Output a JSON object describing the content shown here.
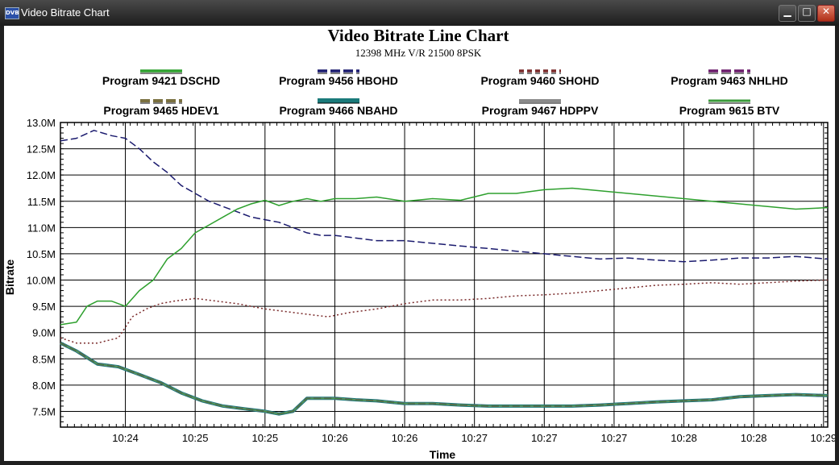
{
  "window": {
    "title": "Video Bitrate Chart",
    "icon": "DVB",
    "minimize_glyph": "▁",
    "maximize_glyph": "□",
    "close_glyph": "✕",
    "close_color": "#c0392b"
  },
  "chart_data": {
    "type": "line",
    "title": "Video Bitrate Line Chart",
    "subtitle": "12398 MHz V/R 21500 8PSK",
    "xlabel": "Time",
    "ylabel": "Bitrate",
    "ylim": [
      7.2,
      13.0
    ],
    "y_ticks": [
      13.0,
      12.5,
      12.0,
      11.5,
      11.0,
      10.5,
      10.0,
      9.5,
      9.0,
      8.5,
      8.0,
      7.5
    ],
    "y_tick_labels": [
      "13.0M",
      "12.5M",
      "12.0M",
      "11.5M",
      "11.0M",
      "10.5M",
      "10.0M",
      "9.5M",
      "9.0M",
      "8.5M",
      "8.0M",
      "7.5M"
    ],
    "x_tick_labels": [
      "10:24",
      "10:25",
      "10:25",
      "10:26",
      "10:26",
      "10:27",
      "10:27",
      "10:27",
      "10:28",
      "10:28",
      "10:29"
    ],
    "x_tick_pos": [
      1.0,
      2.0,
      3.0,
      4.0,
      5.0,
      6.0,
      7.0,
      8.0,
      9.0,
      10.0,
      11.0
    ],
    "xlim": [
      0.07,
      11.06
    ],
    "grid": true,
    "legend_position": "top",
    "series": [
      {
        "name": "Program 9421 DSCHD",
        "color": "#2ea02e",
        "style": "solid",
        "width": 1.5,
        "x": [
          0.07,
          0.3,
          0.45,
          0.6,
          0.8,
          1.0,
          1.2,
          1.4,
          1.6,
          1.8,
          2.0,
          2.2,
          2.4,
          2.6,
          2.8,
          3.0,
          3.2,
          3.4,
          3.6,
          3.8,
          4.0,
          4.3,
          4.6,
          5.0,
          5.4,
          5.8,
          6.2,
          6.6,
          7.0,
          7.4,
          7.8,
          8.2,
          8.6,
          9.0,
          9.4,
          9.8,
          10.2,
          10.6,
          11.06
        ],
        "values": [
          9.15,
          9.2,
          9.5,
          9.6,
          9.6,
          9.5,
          9.8,
          10.0,
          10.4,
          10.6,
          10.9,
          11.05,
          11.2,
          11.35,
          11.45,
          11.52,
          11.42,
          11.5,
          11.55,
          11.5,
          11.55,
          11.55,
          11.58,
          11.5,
          11.55,
          11.52,
          11.65,
          11.65,
          11.72,
          11.75,
          11.7,
          11.65,
          11.6,
          11.55,
          11.5,
          11.45,
          11.4,
          11.35,
          11.38
        ]
      },
      {
        "name": "Program 9456 HBOHD",
        "color": "#1a1a6e",
        "style": "dashed",
        "width": 1.5,
        "x": [
          0.07,
          0.3,
          0.55,
          0.8,
          1.0,
          1.2,
          1.4,
          1.6,
          1.8,
          2.0,
          2.2,
          2.4,
          2.6,
          2.8,
          3.0,
          3.2,
          3.4,
          3.6,
          3.8,
          4.0,
          4.3,
          4.6,
          5.0,
          5.4,
          5.8,
          6.2,
          6.6,
          7.0,
          7.4,
          7.8,
          8.2,
          8.6,
          9.0,
          9.4,
          9.8,
          10.2,
          10.6,
          11.06
        ],
        "values": [
          12.65,
          12.7,
          12.85,
          12.75,
          12.7,
          12.5,
          12.25,
          12.05,
          11.8,
          11.65,
          11.5,
          11.4,
          11.3,
          11.2,
          11.15,
          11.1,
          11.0,
          10.9,
          10.85,
          10.85,
          10.8,
          10.75,
          10.75,
          10.7,
          10.65,
          10.6,
          10.55,
          10.5,
          10.45,
          10.4,
          10.42,
          10.38,
          10.35,
          10.38,
          10.42,
          10.42,
          10.45,
          10.4
        ]
      },
      {
        "name": "Program 9460 SHOHD",
        "color": "#7a2a2a",
        "style": "dotted",
        "width": 1.5,
        "x": [
          0.07,
          0.3,
          0.6,
          0.9,
          1.1,
          1.3,
          1.5,
          1.7,
          2.0,
          2.3,
          2.6,
          3.0,
          3.3,
          3.6,
          3.9,
          4.2,
          4.6,
          5.0,
          5.4,
          5.8,
          6.2,
          6.6,
          7.0,
          7.4,
          7.8,
          8.2,
          8.6,
          9.0,
          9.4,
          9.8,
          10.2,
          10.6,
          11.06
        ],
        "values": [
          8.9,
          8.8,
          8.8,
          8.9,
          9.3,
          9.45,
          9.55,
          9.6,
          9.65,
          9.6,
          9.55,
          9.45,
          9.4,
          9.35,
          9.3,
          9.38,
          9.45,
          9.55,
          9.62,
          9.62,
          9.65,
          9.7,
          9.72,
          9.75,
          9.8,
          9.85,
          9.9,
          9.92,
          9.95,
          9.92,
          9.95,
          9.98,
          10.0
        ]
      },
      {
        "name": "Program 9463 NHLHD",
        "color": "#6a1a6a",
        "style": "dashed",
        "width": 1.5,
        "x": [
          0.07,
          0.3,
          0.6,
          0.9,
          1.2,
          1.5,
          1.8,
          2.1,
          2.4,
          2.7,
          3.0,
          3.2,
          3.4,
          3.6,
          3.8,
          4.0,
          4.3,
          4.6,
          5.0,
          5.4,
          5.8,
          6.2,
          6.6,
          7.0,
          7.4,
          7.8,
          8.2,
          8.6,
          9.0,
          9.4,
          9.8,
          10.2,
          10.6,
          11.06
        ],
        "values": [
          8.8,
          8.65,
          8.4,
          8.35,
          8.2,
          8.05,
          7.85,
          7.7,
          7.6,
          7.55,
          7.5,
          7.45,
          7.5,
          7.75,
          7.75,
          7.75,
          7.72,
          7.7,
          7.65,
          7.65,
          7.62,
          7.6,
          7.6,
          7.6,
          7.6,
          7.62,
          7.65,
          7.68,
          7.7,
          7.72,
          7.78,
          7.8,
          7.82,
          7.8
        ]
      },
      {
        "name": "Program 9465 HDEV1",
        "color": "#7a7040",
        "style": "dashed",
        "width": 2,
        "x": [
          0.07,
          0.3,
          0.6,
          0.9,
          1.2,
          1.5,
          1.8,
          2.1,
          2.4,
          2.7,
          3.0,
          3.2,
          3.4,
          3.6,
          3.8,
          4.0,
          4.3,
          4.6,
          5.0,
          5.4,
          5.8,
          6.2,
          6.6,
          7.0,
          7.4,
          7.8,
          8.2,
          8.6,
          9.0,
          9.4,
          9.8,
          10.2,
          10.6,
          11.06
        ],
        "values": [
          8.8,
          8.65,
          8.4,
          8.35,
          8.2,
          8.05,
          7.85,
          7.7,
          7.6,
          7.55,
          7.5,
          7.45,
          7.5,
          7.75,
          7.75,
          7.75,
          7.72,
          7.7,
          7.65,
          7.65,
          7.62,
          7.6,
          7.6,
          7.6,
          7.6,
          7.62,
          7.65,
          7.68,
          7.7,
          7.72,
          7.78,
          7.8,
          7.82,
          7.8
        ]
      },
      {
        "name": "Program 9466 NBAHD",
        "color": "#1a7a7a",
        "style": "solid",
        "width": 4,
        "x": [
          0.07,
          0.3,
          0.6,
          0.9,
          1.2,
          1.5,
          1.8,
          2.1,
          2.4,
          2.7,
          3.0,
          3.2,
          3.4,
          3.6,
          3.8,
          4.0,
          4.3,
          4.6,
          5.0,
          5.4,
          5.8,
          6.2,
          6.6,
          7.0,
          7.4,
          7.8,
          8.2,
          8.6,
          9.0,
          9.4,
          9.8,
          10.2,
          10.6,
          11.06
        ],
        "values": [
          8.8,
          8.65,
          8.4,
          8.35,
          8.2,
          8.05,
          7.85,
          7.7,
          7.6,
          7.55,
          7.5,
          7.45,
          7.5,
          7.75,
          7.75,
          7.75,
          7.72,
          7.7,
          7.65,
          7.65,
          7.62,
          7.6,
          7.6,
          7.6,
          7.6,
          7.62,
          7.65,
          7.68,
          7.7,
          7.72,
          7.78,
          7.8,
          7.82,
          7.8
        ]
      },
      {
        "name": "Program 9467 HDPPV",
        "color": "#8a8a8a",
        "style": "solid",
        "width": 2,
        "x": [
          0.07,
          0.3,
          0.6,
          0.9,
          1.2,
          1.5,
          1.8,
          2.1,
          2.4,
          2.7,
          3.0,
          3.2,
          3.4,
          3.6,
          3.8,
          4.0,
          4.3,
          4.6,
          5.0,
          5.4,
          5.8,
          6.2,
          6.6,
          7.0,
          7.4,
          7.8,
          8.2,
          8.6,
          9.0,
          9.4,
          9.8,
          10.2,
          10.6,
          11.06
        ],
        "values": [
          8.8,
          8.65,
          8.4,
          8.35,
          8.2,
          8.05,
          7.85,
          7.7,
          7.6,
          7.55,
          7.5,
          7.45,
          7.5,
          7.75,
          7.75,
          7.75,
          7.72,
          7.7,
          7.65,
          7.65,
          7.62,
          7.6,
          7.6,
          7.6,
          7.6,
          7.62,
          7.65,
          7.68,
          7.7,
          7.72,
          7.78,
          7.8,
          7.82,
          7.8
        ]
      },
      {
        "name": "Program 9615 BTV",
        "color": "#3a9a3a",
        "style": "solid",
        "width": 1,
        "x": [
          0.07,
          0.3,
          0.6,
          0.9,
          1.2,
          1.5,
          1.8,
          2.1,
          2.4,
          2.7,
          3.0,
          3.2,
          3.4,
          3.6,
          3.8,
          4.0,
          4.3,
          4.6,
          5.0,
          5.4,
          5.8,
          6.2,
          6.6,
          7.0,
          7.4,
          7.8,
          8.2,
          8.6,
          9.0,
          9.4,
          9.8,
          10.2,
          10.6,
          11.06
        ],
        "values": [
          8.8,
          8.65,
          8.4,
          8.35,
          8.2,
          8.05,
          7.85,
          7.7,
          7.6,
          7.55,
          7.5,
          7.45,
          7.5,
          7.75,
          7.75,
          7.75,
          7.72,
          7.7,
          7.65,
          7.65,
          7.62,
          7.6,
          7.6,
          7.6,
          7.6,
          7.62,
          7.65,
          7.68,
          7.7,
          7.72,
          7.78,
          7.8,
          7.82,
          7.8
        ]
      }
    ]
  }
}
